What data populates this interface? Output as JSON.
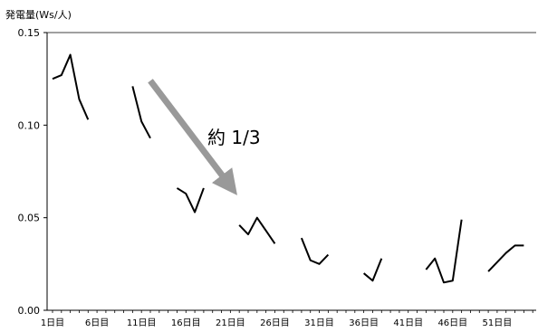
{
  "chart_data": {
    "type": "line",
    "ylabel": "発電量(Ws/人)",
    "ylim": [
      0,
      0.15
    ],
    "yticks": [
      "0.00",
      "0.05",
      "0.10",
      "0.15"
    ],
    "xlim": [
      1,
      56
    ],
    "xticks": [
      "1日目",
      "6日目",
      "11日目",
      "16日目",
      "21日目",
      "26日目",
      "31日目",
      "36日目",
      "41日目",
      "46日目",
      "51日目"
    ],
    "grid": false,
    "series": [
      {
        "color": "#000000",
        "points": [
          [
            1,
            0.125
          ],
          [
            2,
            0.127
          ],
          [
            3,
            0.138
          ],
          [
            4,
            0.114
          ],
          [
            5,
            0.103
          ],
          [
            10,
            0.121
          ],
          [
            11,
            0.102
          ],
          [
            12,
            0.093
          ],
          [
            15,
            0.066
          ],
          [
            16,
            0.063
          ],
          [
            17,
            0.053
          ],
          [
            18,
            0.066
          ],
          [
            22,
            0.046
          ],
          [
            23,
            0.041
          ],
          [
            24,
            0.05
          ],
          [
            25,
            0.043
          ],
          [
            26,
            0.036
          ],
          [
            29,
            0.039
          ],
          [
            30,
            0.027
          ],
          [
            31,
            0.025
          ],
          [
            32,
            0.03
          ],
          [
            36,
            0.02
          ],
          [
            37,
            0.016
          ],
          [
            38,
            0.028
          ],
          [
            43,
            0.022
          ],
          [
            44,
            0.028
          ],
          [
            45,
            0.015
          ],
          [
            46,
            0.016
          ],
          [
            47,
            0.049
          ],
          [
            50,
            0.021
          ],
          [
            51,
            0.026
          ],
          [
            52,
            0.031
          ],
          [
            53,
            0.035
          ],
          [
            54,
            0.035
          ]
        ]
      }
    ],
    "annotation": {
      "text": "約 1/3",
      "color": "#999999",
      "arrow_from": [
        12,
        0.124
      ],
      "arrow_to": [
        21,
        0.067
      ]
    }
  }
}
